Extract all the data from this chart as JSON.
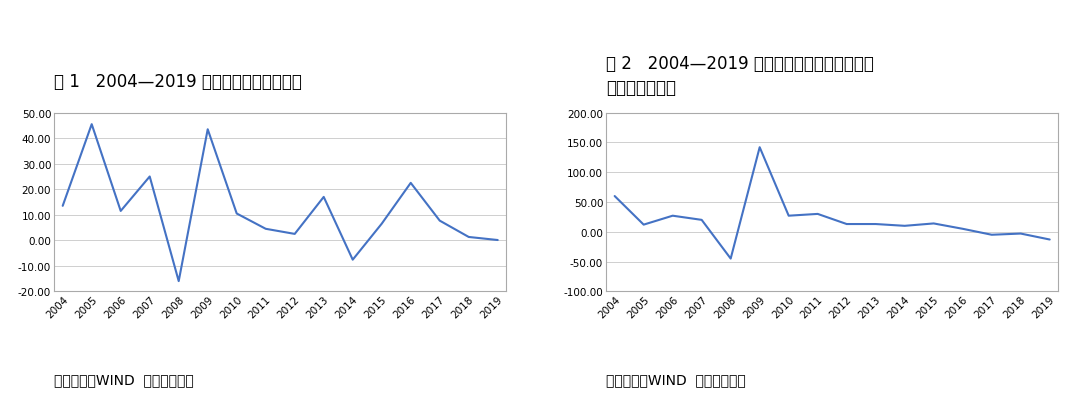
{
  "chart1": {
    "title_line1": "图 1   2004—2019 年商品房销售面积增速",
    "title_line2": null,
    "years": [
      2004,
      2005,
      2006,
      2007,
      2008,
      2009,
      2010,
      2011,
      2012,
      2013,
      2014,
      2015,
      2016,
      2017,
      2018,
      2019
    ],
    "values": [
      13.5,
      45.5,
      11.5,
      25.0,
      -16.0,
      43.5,
      10.5,
      4.5,
      2.5,
      17.0,
      -7.6,
      6.5,
      22.5,
      7.7,
      1.3,
      0.1
    ],
    "ylim": [
      -20.0,
      50.0
    ],
    "yticks": [
      -20.0,
      -10.0,
      0.0,
      10.0,
      20.0,
      30.0,
      40.0,
      50.0
    ],
    "source": "资料来源：WIND  联合资信整理"
  },
  "chart2": {
    "title_line1": "图 2   2004—2019 年家用电器及电子产品专门",
    "title_line2": "零售销售额增速",
    "years": [
      2004,
      2005,
      2006,
      2007,
      2008,
      2009,
      2010,
      2011,
      2012,
      2013,
      2014,
      2015,
      2016,
      2017,
      2018,
      2019
    ],
    "values": [
      60.0,
      12.0,
      27.0,
      20.0,
      -45.0,
      142.0,
      27.0,
      30.0,
      13.0,
      13.0,
      10.0,
      14.0,
      5.0,
      -5.0,
      -3.0,
      -13.0
    ],
    "ylim": [
      -100.0,
      200.0
    ],
    "yticks": [
      -100.0,
      -50.0,
      0.0,
      50.0,
      100.0,
      150.0,
      200.0
    ],
    "source": "资料来源：WIND  联合资信整理"
  },
  "line_color": "#4472C4",
  "line_width": 1.5,
  "bg_color": "#ffffff",
  "plot_bg_color": "#ffffff",
  "grid_color": "#c8c8c8",
  "title_fontsize": 12,
  "tick_fontsize": 7.5,
  "source_fontsize": 10
}
